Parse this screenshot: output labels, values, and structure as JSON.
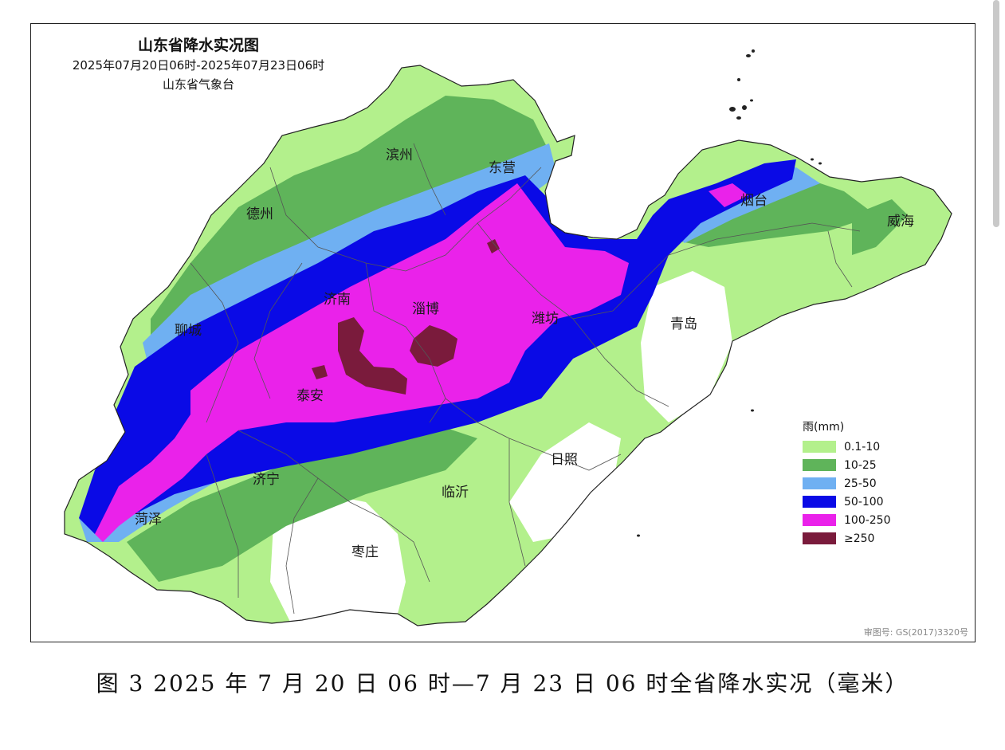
{
  "map": {
    "title": "山东省降水实况图",
    "period": "2025年07月20日06时-2025年07月23日06时",
    "issuer": "山东省气象台",
    "approval_number": "审图号: GS(2017)3320号"
  },
  "cities": [
    {
      "name": "滨州"
    },
    {
      "name": "东营"
    },
    {
      "name": "德州"
    },
    {
      "name": "烟台"
    },
    {
      "name": "威海"
    },
    {
      "name": "济南"
    },
    {
      "name": "淄博"
    },
    {
      "name": "潍坊"
    },
    {
      "name": "青岛"
    },
    {
      "name": "聊城"
    },
    {
      "name": "泰安"
    },
    {
      "name": "日照"
    },
    {
      "name": "济宁"
    },
    {
      "name": "临沂"
    },
    {
      "name": "菏泽"
    },
    {
      "name": "枣庄"
    }
  ],
  "legend": {
    "title": "雨(mm)",
    "items": [
      {
        "label": "0.1-10",
        "color": "#b3f08c"
      },
      {
        "label": "10-25",
        "color": "#5fb45a"
      },
      {
        "label": "25-50",
        "color": "#6fb0f2"
      },
      {
        "label": "50-100",
        "color": "#0a0ae6"
      },
      {
        "label": "100-250",
        "color": "#ea22ea"
      },
      {
        "label": "≥250",
        "color": "#7a1b3c"
      }
    ]
  },
  "caption": "图 3 2025 年 7 月 20 日 06 时—7 月 23 日 06 时全省降水实况（毫米）"
}
